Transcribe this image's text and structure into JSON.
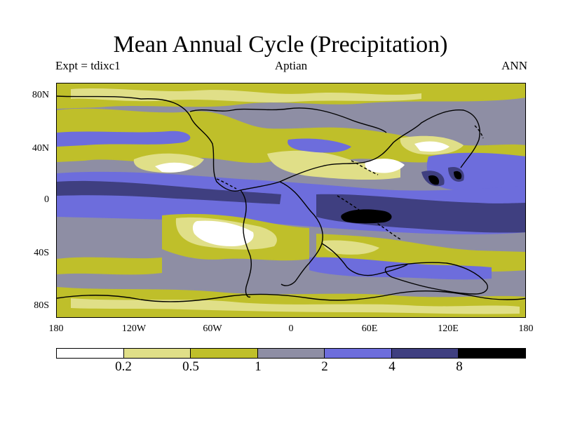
{
  "title": "Mean Annual Cycle (Precipitation)",
  "subtitle": {
    "left": "Expt = tdixc1",
    "center": "Aptian",
    "right": "ANN"
  },
  "map": {
    "projection": "cylindrical equidistant",
    "lat_range": [
      -90,
      90
    ],
    "lon_range": [
      -180,
      180
    ],
    "lat_labels": [
      "80N",
      "40N",
      "0",
      "40S",
      "80S"
    ],
    "lon_labels": [
      "180",
      "120W",
      "60W",
      "0",
      "60E",
      "120E",
      "180"
    ],
    "variable": "precipitation"
  },
  "colorbar": {
    "levels": [
      0.2,
      0.5,
      1,
      2,
      4,
      8
    ],
    "level_labels": [
      "0.2",
      "0.5",
      "1",
      "2",
      "4",
      "8"
    ],
    "colors": [
      "#ffffff",
      "#e0df88",
      "#bfbf2a",
      "#8e8ea4",
      "#6d6ddc",
      "#3f3f80",
      "#000000"
    ]
  }
}
